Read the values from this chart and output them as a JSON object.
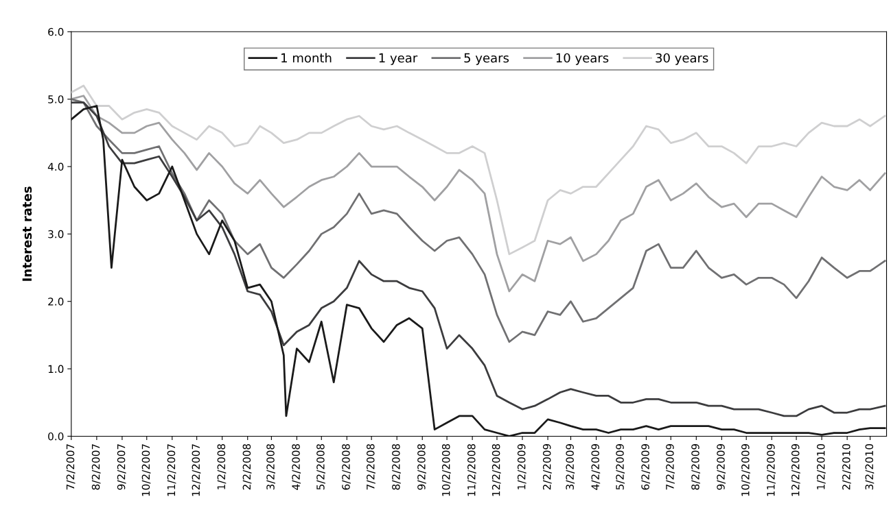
{
  "chart_data": {
    "type": "line",
    "ylabel": "Interest rates",
    "legend": "top",
    "grid": false,
    "line_style": "solid",
    "marker": "none",
    "xlim": [
      "2007-07-02",
      "2010-03-22"
    ],
    "ylim": [
      0,
      6
    ],
    "yticks": [
      {
        "value": 0,
        "label": "0.0"
      },
      {
        "value": 1,
        "label": "1.0"
      },
      {
        "value": 2,
        "label": "2.0"
      },
      {
        "value": 3,
        "label": "3.0"
      },
      {
        "value": 4,
        "label": "4.0"
      },
      {
        "value": 5,
        "label": "5.0"
      },
      {
        "value": 6,
        "label": "6.0"
      }
    ],
    "xticks": [
      {
        "value": "2007-07-02",
        "label": "7/2/2007"
      },
      {
        "value": "2007-08-02",
        "label": "8/2/2007"
      },
      {
        "value": "2007-09-02",
        "label": "9/2/2007"
      },
      {
        "value": "2007-10-02",
        "label": "10/2/2007"
      },
      {
        "value": "2007-11-02",
        "label": "11/2/2007"
      },
      {
        "value": "2007-12-02",
        "label": "12/2/2007"
      },
      {
        "value": "2008-01-02",
        "label": "1/2/2008"
      },
      {
        "value": "2008-02-02",
        "label": "2/2/2008"
      },
      {
        "value": "2008-03-02",
        "label": "3/2/2008"
      },
      {
        "value": "2008-04-02",
        "label": "4/2/2008"
      },
      {
        "value": "2008-05-02",
        "label": "5/2/2008"
      },
      {
        "value": "2008-06-02",
        "label": "6/2/2008"
      },
      {
        "value": "2008-07-02",
        "label": "7/2/2008"
      },
      {
        "value": "2008-08-02",
        "label": "8/2/2008"
      },
      {
        "value": "2008-09-02",
        "label": "9/2/2008"
      },
      {
        "value": "2008-10-02",
        "label": "10/2/2008"
      },
      {
        "value": "2008-11-02",
        "label": "11/2/2008"
      },
      {
        "value": "2008-12-02",
        "label": "12/2/2008"
      },
      {
        "value": "2009-01-02",
        "label": "1/2/2009"
      },
      {
        "value": "2009-02-02",
        "label": "2/2/2009"
      },
      {
        "value": "2009-03-02",
        "label": "3/2/2009"
      },
      {
        "value": "2009-04-02",
        "label": "4/2/2009"
      },
      {
        "value": "2009-05-02",
        "label": "5/2/2009"
      },
      {
        "value": "2009-06-02",
        "label": "6/2/2009"
      },
      {
        "value": "2009-07-02",
        "label": "7/2/2009"
      },
      {
        "value": "2009-08-02",
        "label": "8/2/2009"
      },
      {
        "value": "2009-09-02",
        "label": "9/2/2009"
      },
      {
        "value": "2009-10-02",
        "label": "10/2/2009"
      },
      {
        "value": "2009-11-02",
        "label": "11/2/2009"
      },
      {
        "value": "2009-12-02",
        "label": "12/2/2009"
      },
      {
        "value": "2010-01-02",
        "label": "1/2/2010"
      },
      {
        "value": "2010-02-02",
        "label": "2/2/2010"
      },
      {
        "value": "2010-03-02",
        "label": "3/2/2010"
      }
    ],
    "x": [
      "2007-07-02",
      "2007-07-17",
      "2007-08-02",
      "2007-08-17",
      "2007-09-02",
      "2007-09-17",
      "2007-10-02",
      "2007-10-17",
      "2007-11-02",
      "2007-11-17",
      "2007-12-02",
      "2007-12-17",
      "2008-01-02",
      "2008-01-17",
      "2008-02-02",
      "2008-02-17",
      "2008-03-02",
      "2008-03-17",
      "2008-04-02",
      "2008-04-17",
      "2008-05-02",
      "2008-05-17",
      "2008-06-02",
      "2008-06-17",
      "2008-07-02",
      "2008-07-17",
      "2008-08-02",
      "2008-08-17",
      "2008-09-02",
      "2008-09-17",
      "2008-10-02",
      "2008-10-17",
      "2008-11-02",
      "2008-11-17",
      "2008-12-02",
      "2008-12-17",
      "2009-01-02",
      "2009-01-17",
      "2009-02-02",
      "2009-02-17",
      "2009-03-02",
      "2009-03-17",
      "2009-04-02",
      "2009-04-17",
      "2009-05-02",
      "2009-05-17",
      "2009-06-02",
      "2009-06-17",
      "2009-07-02",
      "2009-07-17",
      "2009-08-02",
      "2009-08-17",
      "2009-09-02",
      "2009-09-17",
      "2009-10-02",
      "2009-10-17",
      "2009-11-02",
      "2009-11-17",
      "2009-12-02",
      "2009-12-17",
      "2010-01-02",
      "2010-01-17",
      "2010-02-02",
      "2010-02-17",
      "2010-03-02",
      "2010-03-20"
    ],
    "series": [
      {
        "name": "1 month",
        "color": "#1a1a1a",
        "x": [
          "2007-07-02",
          "2007-07-17",
          "2007-08-02",
          "2007-08-10",
          "2007-08-20",
          "2007-09-02",
          "2007-09-17",
          "2007-10-02",
          "2007-10-17",
          "2007-11-02",
          "2007-11-17",
          "2007-12-02",
          "2007-12-17",
          "2008-01-02",
          "2008-01-17",
          "2008-02-02",
          "2008-02-17",
          "2008-03-02",
          "2008-03-17",
          "2008-03-20",
          "2008-04-02",
          "2008-04-17",
          "2008-05-02",
          "2008-05-17",
          "2008-06-02",
          "2008-06-17",
          "2008-07-02",
          "2008-07-17",
          "2008-08-02",
          "2008-08-17",
          "2008-09-02",
          "2008-09-17",
          "2008-10-02",
          "2008-10-17",
          "2008-11-02",
          "2008-11-17",
          "2008-12-02",
          "2008-12-17",
          "2009-01-02",
          "2009-01-17",
          "2009-02-02",
          "2009-02-17",
          "2009-03-02",
          "2009-03-17",
          "2009-04-02",
          "2009-04-17",
          "2009-05-02",
          "2009-05-17",
          "2009-06-02",
          "2009-06-17",
          "2009-07-02",
          "2009-07-17",
          "2009-08-02",
          "2009-08-17",
          "2009-09-02",
          "2009-09-17",
          "2009-10-02",
          "2009-10-17",
          "2009-11-02",
          "2009-11-17",
          "2009-12-02",
          "2009-12-17",
          "2010-01-02",
          "2010-01-17",
          "2010-02-02",
          "2010-02-17",
          "2010-03-02",
          "2010-03-20"
        ],
        "values": [
          4.7,
          4.85,
          4.9,
          4.4,
          2.5,
          4.1,
          3.7,
          3.5,
          3.6,
          4.0,
          3.5,
          3.0,
          2.7,
          3.2,
          2.9,
          2.2,
          2.25,
          2.0,
          1.2,
          0.3,
          1.3,
          1.1,
          1.7,
          0.8,
          1.95,
          1.9,
          1.6,
          1.4,
          1.65,
          1.75,
          1.6,
          0.1,
          0.2,
          0.3,
          0.3,
          0.1,
          0.05,
          0.0,
          0.05,
          0.05,
          0.25,
          0.2,
          0.15,
          0.1,
          0.1,
          0.05,
          0.1,
          0.1,
          0.15,
          0.1,
          0.15,
          0.15,
          0.15,
          0.15,
          0.1,
          0.1,
          0.05,
          0.05,
          0.05,
          0.05,
          0.05,
          0.05,
          0.02,
          0.05,
          0.05,
          0.1,
          0.12,
          0.12
        ]
      },
      {
        "name": "1 year",
        "color": "#3c3c3e",
        "values": [
          4.95,
          4.95,
          4.75,
          4.3,
          4.05,
          4.05,
          4.1,
          4.15,
          3.85,
          3.55,
          3.2,
          3.35,
          3.1,
          2.7,
          2.15,
          2.1,
          1.85,
          1.35,
          1.55,
          1.65,
          1.9,
          2.0,
          2.2,
          2.6,
          2.4,
          2.3,
          2.3,
          2.2,
          2.15,
          1.9,
          1.3,
          1.5,
          1.3,
          1.05,
          0.6,
          0.5,
          0.4,
          0.45,
          0.55,
          0.65,
          0.7,
          0.65,
          0.6,
          0.6,
          0.5,
          0.5,
          0.55,
          0.55,
          0.5,
          0.5,
          0.5,
          0.45,
          0.45,
          0.4,
          0.4,
          0.4,
          0.35,
          0.3,
          0.3,
          0.4,
          0.45,
          0.35,
          0.35,
          0.4,
          0.4,
          0.45
        ]
      },
      {
        "name": "5 years",
        "color": "#707072",
        "values": [
          5.0,
          4.95,
          4.6,
          4.4,
          4.2,
          4.2,
          4.25,
          4.3,
          3.9,
          3.6,
          3.2,
          3.5,
          3.3,
          2.9,
          2.7,
          2.85,
          2.5,
          2.35,
          2.55,
          2.75,
          3.0,
          3.1,
          3.3,
          3.6,
          3.3,
          3.35,
          3.3,
          3.1,
          2.9,
          2.75,
          2.9,
          2.95,
          2.7,
          2.4,
          1.8,
          1.4,
          1.55,
          1.5,
          1.85,
          1.8,
          2.0,
          1.7,
          1.75,
          1.9,
          2.05,
          2.2,
          2.75,
          2.85,
          2.5,
          2.5,
          2.75,
          2.5,
          2.35,
          2.4,
          2.25,
          2.35,
          2.35,
          2.25,
          2.05,
          2.3,
          2.65,
          2.5,
          2.35,
          2.45,
          2.45,
          2.6
        ]
      },
      {
        "name": "10 years",
        "color": "#a0a0a2",
        "values": [
          5.0,
          5.05,
          4.75,
          4.65,
          4.5,
          4.5,
          4.6,
          4.65,
          4.4,
          4.2,
          3.95,
          4.2,
          4.0,
          3.75,
          3.6,
          3.8,
          3.6,
          3.4,
          3.55,
          3.7,
          3.8,
          3.85,
          4.0,
          4.2,
          4.0,
          4.0,
          4.0,
          3.85,
          3.7,
          3.5,
          3.7,
          3.95,
          3.8,
          3.6,
          2.7,
          2.15,
          2.4,
          2.3,
          2.9,
          2.85,
          2.95,
          2.6,
          2.7,
          2.9,
          3.2,
          3.3,
          3.7,
          3.8,
          3.5,
          3.6,
          3.75,
          3.55,
          3.4,
          3.45,
          3.25,
          3.45,
          3.45,
          3.35,
          3.25,
          3.55,
          3.85,
          3.7,
          3.65,
          3.8,
          3.65,
          3.9
        ]
      },
      {
        "name": "30 years",
        "color": "#cfcfd0",
        "values": [
          5.1,
          5.2,
          4.9,
          4.9,
          4.7,
          4.8,
          4.85,
          4.8,
          4.6,
          4.5,
          4.4,
          4.6,
          4.5,
          4.3,
          4.35,
          4.6,
          4.5,
          4.35,
          4.4,
          4.5,
          4.5,
          4.6,
          4.7,
          4.75,
          4.6,
          4.55,
          4.6,
          4.5,
          4.4,
          4.3,
          4.2,
          4.2,
          4.3,
          4.2,
          3.5,
          2.7,
          2.8,
          2.9,
          3.5,
          3.65,
          3.6,
          3.7,
          3.7,
          3.9,
          4.1,
          4.3,
          4.6,
          4.55,
          4.35,
          4.4,
          4.5,
          4.3,
          4.3,
          4.2,
          4.05,
          4.3,
          4.3,
          4.35,
          4.3,
          4.5,
          4.65,
          4.6,
          4.6,
          4.7,
          4.6,
          4.75
        ]
      }
    ]
  }
}
